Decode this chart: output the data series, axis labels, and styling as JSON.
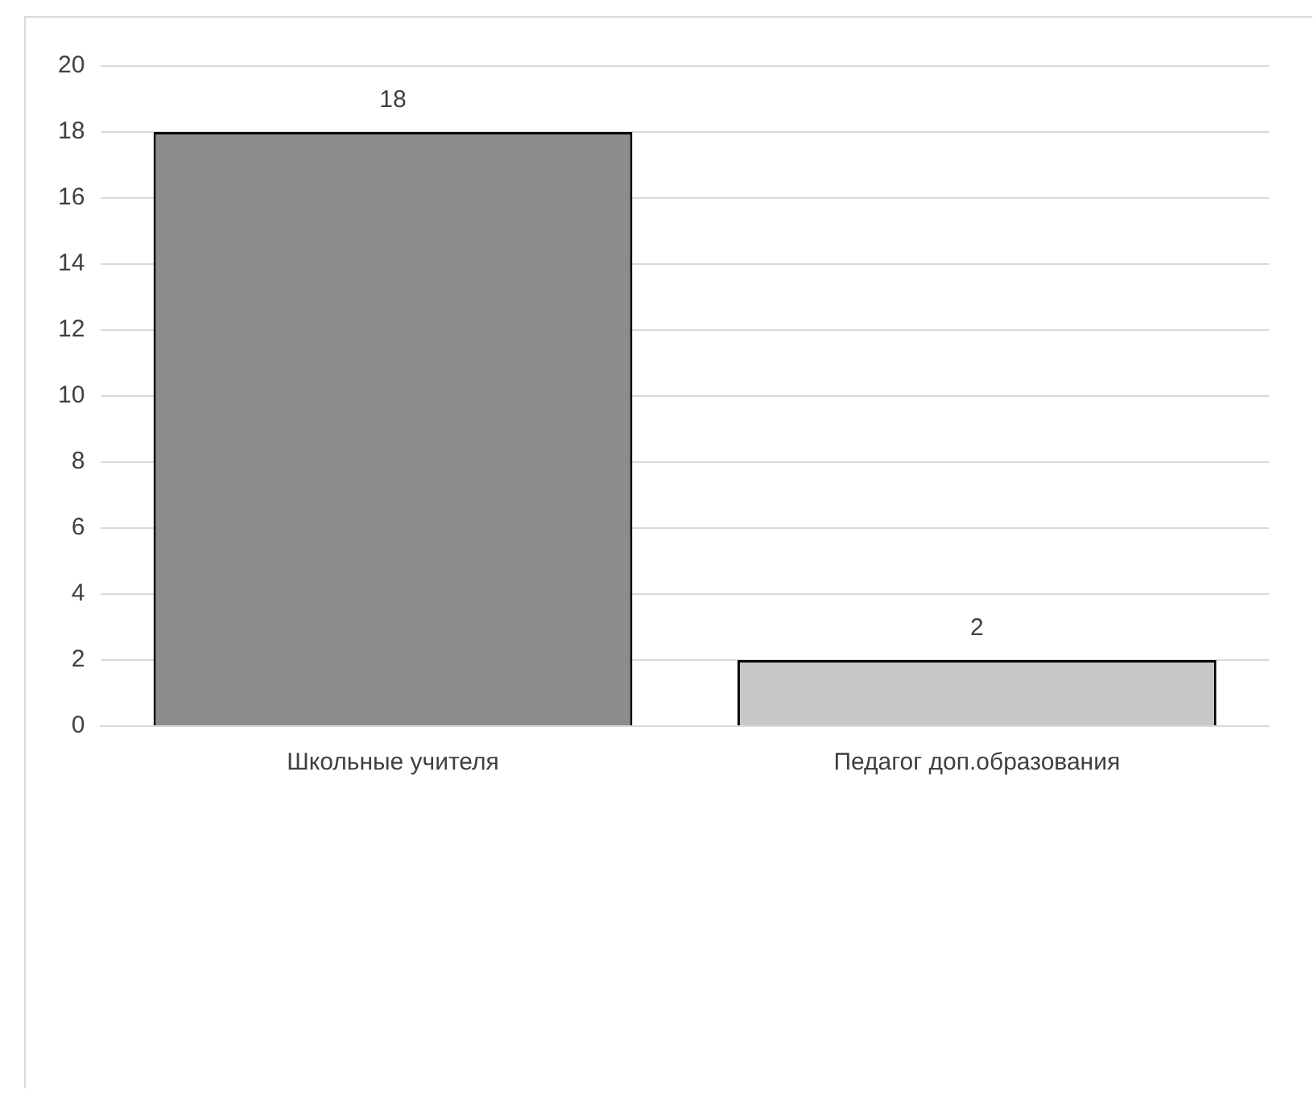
{
  "chart_data": {
    "type": "bar",
    "categories": [
      "Школьные учителя",
      "Педагог доп.образования"
    ],
    "values": [
      18,
      2
    ],
    "colors": [
      "#8c8c8c",
      "#c8c8c8"
    ],
    "ylim": [
      0,
      20
    ],
    "yticks": [
      0,
      2,
      4,
      6,
      8,
      10,
      12,
      14,
      16,
      18,
      20
    ],
    "grid": "y",
    "data_labels": true
  }
}
